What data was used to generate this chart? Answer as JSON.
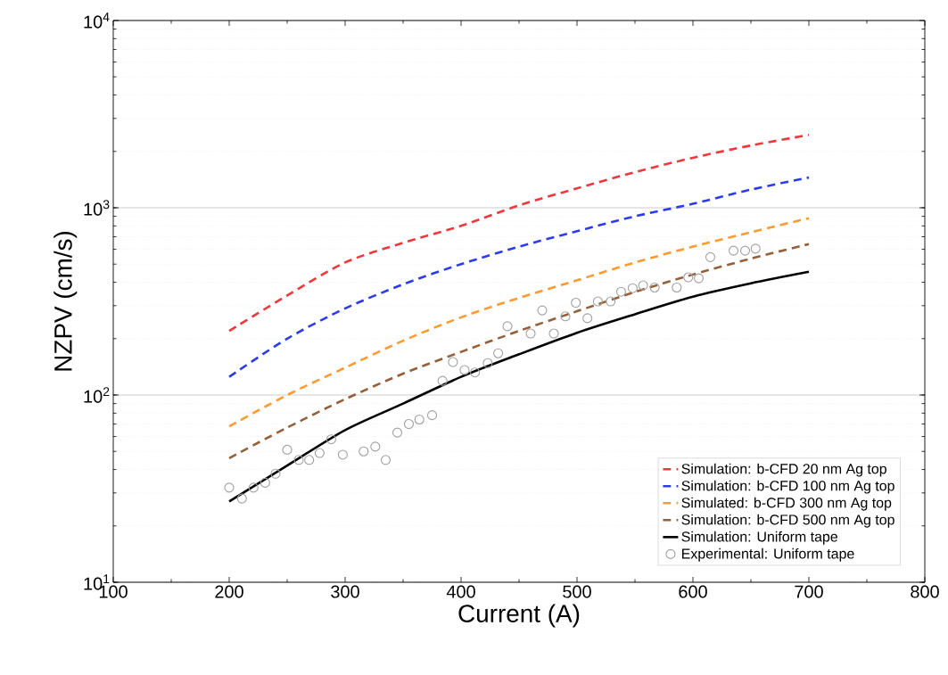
{
  "chart_data": {
    "type": "line",
    "xlabel": "Current (A)",
    "ylabel": "NZPV (cm/s)",
    "log": "y",
    "xlim": [
      100,
      800
    ],
    "ylim": [
      10,
      10000
    ],
    "xticks": [
      100,
      200,
      300,
      400,
      500,
      600,
      700,
      800
    ],
    "yticks": [
      {
        "value": 10,
        "label": "10$^{1}$"
      },
      {
        "value": 100,
        "label": "10$^{2}$"
      },
      {
        "value": 1000,
        "label": "10$^{3}$"
      },
      {
        "value": 10000,
        "label": "10$^{4}$"
      }
    ],
    "grid": "y",
    "legend": "bottom right",
    "series": [
      {
        "name": "Simulation: b-CFD 20 nm Ag top",
        "line_style": "dashed",
        "color": "#f0383c",
        "x": [
          200,
          250,
          300,
          350,
          400,
          450,
          500,
          550,
          600,
          650,
          700
        ],
        "values": [
          220,
          340,
          510,
          650,
          800,
          1030,
          1270,
          1550,
          1850,
          2150,
          2450
        ]
      },
      {
        "name": "Simulation: b-CFD 100 nm Ag top",
        "line_style": "dashed",
        "color": "#2b3cf0",
        "x": [
          200,
          250,
          300,
          350,
          400,
          450,
          500,
          550,
          600,
          650,
          700
        ],
        "values": [
          125,
          200,
          290,
          390,
          500,
          620,
          750,
          900,
          1050,
          1250,
          1450
        ]
      },
      {
        "name": "Simulated: b-CFD 300 nm Ag top",
        "line_style": "dashed",
        "color": "#ff9a2e",
        "x": [
          200,
          250,
          300,
          350,
          400,
          450,
          500,
          550,
          600,
          650,
          700
        ],
        "values": [
          68,
          100,
          140,
          195,
          260,
          330,
          410,
          510,
          620,
          740,
          880
        ]
      },
      {
        "name": "Simulation: b-CFD 500 nm Ag top",
        "line_style": "dashed",
        "color": "#94603a",
        "x": [
          200,
          250,
          300,
          350,
          400,
          450,
          500,
          550,
          600,
          650,
          700
        ],
        "values": [
          46,
          67,
          95,
          130,
          170,
          220,
          280,
          355,
          440,
          535,
          640
        ]
      },
      {
        "name": "Simulation: Uniform tape",
        "line_style": "solid",
        "color": "#000000",
        "x": [
          200,
          250,
          300,
          350,
          400,
          450,
          500,
          550,
          600,
          650,
          700
        ],
        "values": [
          27,
          42,
          65,
          90,
          125,
          165,
          215,
          270,
          335,
          395,
          455
        ]
      },
      {
        "name": "Experimental: Uniform tape",
        "type": "scatter",
        "marker": "circle",
        "color": "#a0a0a0",
        "x": [
          200,
          211,
          221,
          231,
          240,
          250,
          260,
          269,
          278,
          288,
          298,
          316,
          326,
          335,
          345,
          355,
          364,
          375,
          384,
          393,
          403,
          412,
          423,
          432,
          440,
          460,
          470,
          480,
          490,
          499,
          509,
          518,
          529,
          538,
          548,
          557,
          567,
          586,
          596,
          605,
          615,
          635,
          645,
          654
        ],
        "values": [
          32,
          28,
          32,
          34,
          38,
          51,
          45,
          45,
          49,
          58,
          48,
          50,
          53,
          45,
          63,
          70,
          74,
          78,
          119,
          150,
          136,
          132,
          148,
          167,
          233,
          213,
          283,
          213,
          263,
          311,
          257,
          316,
          316,
          356,
          372,
          385,
          375,
          375,
          425,
          420,
          545,
          590,
          590,
          605
        ]
      }
    ]
  }
}
